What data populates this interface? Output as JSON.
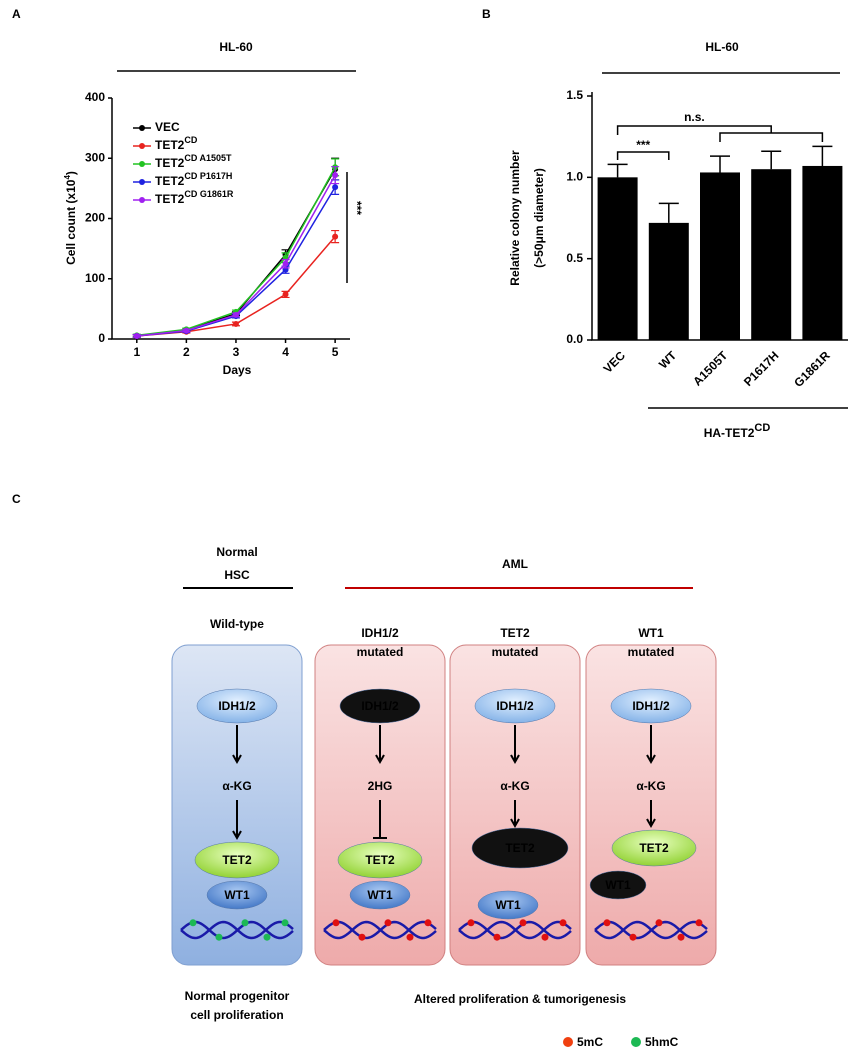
{
  "chart_data": [
    {
      "type": "line",
      "panel_label": "A",
      "title": "HL-60",
      "xlabel": "Days",
      "ylabel": [
        "Cell count (x10",
        "4",
        ")"
      ],
      "x": [
        1,
        2,
        3,
        4,
        5
      ],
      "xlim": [
        0.5,
        5.3
      ],
      "xticks": [
        1,
        2,
        3,
        4,
        5
      ],
      "ylim": [
        0,
        400
      ],
      "yticks": [
        0,
        100,
        200,
        300,
        400
      ],
      "series": [
        {
          "name": "VEC",
          "color": "#000000",
          "values": [
            5,
            15,
            42,
            140,
            282
          ],
          "errors": [
            2,
            2,
            3,
            8,
            18
          ]
        },
        {
          "name": "TET2",
          "superscript": "CD",
          "color": "#e8231f",
          "values": [
            5,
            12,
            25,
            74,
            170
          ],
          "errors": [
            2,
            2,
            3,
            5,
            10
          ]
        },
        {
          "name": "TET2",
          "superscript": "CD A1505T",
          "color": "#22c322",
          "values": [
            6,
            16,
            45,
            135,
            285
          ],
          "errors": [
            2,
            2,
            3,
            8,
            14
          ]
        },
        {
          "name": "TET2",
          "superscript": "CD P1617H",
          "color": "#1f22e0",
          "values": [
            5,
            13,
            38,
            115,
            252
          ],
          "errors": [
            2,
            2,
            3,
            6,
            12
          ]
        },
        {
          "name": "TET2",
          "superscript": "CD G1861R",
          "color": "#a020f0",
          "values": [
            5,
            14,
            40,
            125,
            272
          ],
          "errors": [
            2,
            2,
            3,
            7,
            14
          ]
        }
      ],
      "annotation": "***"
    },
    {
      "type": "bar",
      "panel_label": "B",
      "title": "HL-60",
      "ylabel": [
        "Relative colony number",
        "(>50μm diameter)"
      ],
      "categories": [
        "VEC",
        "WT",
        "A1505T",
        "P1617H",
        "G1861R"
      ],
      "values": [
        1.0,
        0.72,
        1.03,
        1.05,
        1.07
      ],
      "errors": [
        0.08,
        0.12,
        0.1,
        0.11,
        0.12
      ],
      "color": "#000000",
      "ylim": [
        0,
        1.5
      ],
      "yticks": [
        {
          "value": 0,
          "label": "0.0"
        },
        0.5,
        {
          "value": 1,
          "label": "1.0"
        },
        1.5
      ],
      "group_label": {
        "text": "HA-TET2",
        "superscript": "CD"
      },
      "annotations": [
        "***",
        "n.s."
      ]
    }
  ],
  "diagram": {
    "panel_label": "C",
    "normal_title": [
      "Normal",
      "HSC"
    ],
    "aml_title": "AML",
    "columns": [
      {
        "header": [
          "Wild-type"
        ],
        "top": "IDH1/2",
        "middle": "α-KG",
        "enzyme": "TET2",
        "partner": "WT1"
      },
      {
        "header": [
          "IDH1/2",
          "mutated"
        ],
        "top": "IDH1/2",
        "middle": "2HG",
        "enzyme": "TET2",
        "partner": "WT1"
      },
      {
        "header": [
          "TET2",
          "mutated"
        ],
        "top": "IDH1/2",
        "middle": "α-KG",
        "enzyme": "TET2",
        "partner": "WT1"
      },
      {
        "header": [
          "WT1",
          "mutated"
        ],
        "top": "IDH1/2",
        "middle": "α-KG",
        "enzyme": "TET2",
        "partner": "WT1"
      }
    ],
    "normal_caption": [
      "Normal progenitor",
      "cell proliferation"
    ],
    "aml_caption": "Altered proliferation & tumorigenesis",
    "legend": [
      "5mC",
      "5hmC"
    ]
  }
}
